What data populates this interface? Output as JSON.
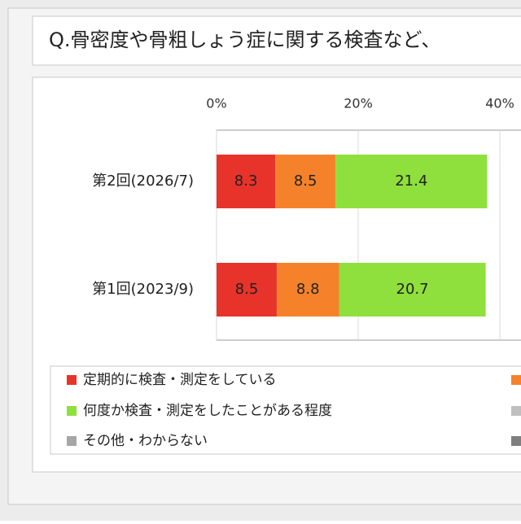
{
  "chart_data": {
    "type": "bar",
    "orientation": "horizontal",
    "stacked": true,
    "title": "Q.骨密度や骨粗しょう症に関する検査など、",
    "categories": [
      "第2回(2026/7)",
      "第1回(2023/9)"
    ],
    "series": [
      {
        "name": "定期的に検査・測定をしている",
        "color": "#e8332a",
        "values": [
          8.3,
          8.5
        ]
      },
      {
        "color": "#f5822a",
        "values": [
          8.5,
          8.8
        ]
      },
      {
        "name": "何度か検査・測定をしたことがある程度",
        "color": "#8fe03c",
        "values": [
          21.4,
          20.7
        ]
      }
    ],
    "legend_items": [
      {
        "color": "#bfbfbf"
      },
      {
        "name": "その他・わからない",
        "color": "#a6a6a6"
      },
      {
        "color": "#7f7f7f"
      }
    ],
    "xlim": [
      0,
      100
    ],
    "xticks": [
      {
        "value": 0,
        "label": "0%"
      },
      {
        "value": 20,
        "label": "20%"
      },
      {
        "value": 40,
        "label": "40%"
      }
    ],
    "grid": true
  }
}
